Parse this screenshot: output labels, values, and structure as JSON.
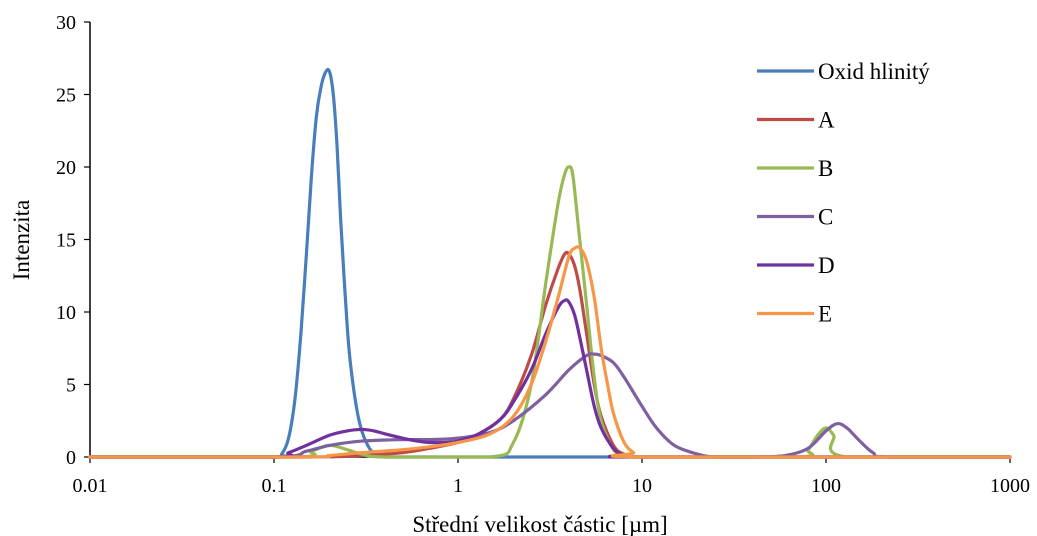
{
  "chart_data": {
    "type": "line",
    "title": "",
    "xlabel": "Střední velikost částic [µm]",
    "ylabel": "Intenzita",
    "xscale": "log",
    "xlim": [
      0.01,
      1000
    ],
    "ylim": [
      0,
      30
    ],
    "xticks": [
      0.01,
      0.1,
      1,
      10,
      100,
      1000
    ],
    "xtick_labels": [
      "0.01",
      "0.1",
      "1",
      "10",
      "100",
      "1000"
    ],
    "yticks": [
      0,
      5,
      10,
      15,
      20,
      25,
      30
    ],
    "ytick_labels": [
      "0",
      "5",
      "10",
      "15",
      "20",
      "25",
      "30"
    ],
    "grid": false,
    "legend_position": "right",
    "series": [
      {
        "name": "Oxid hlinitý",
        "color": "#4a7ebb",
        "x": [
          0.01,
          0.1,
          0.11,
          0.12,
          0.13,
          0.14,
          0.15,
          0.16,
          0.17,
          0.18,
          0.19,
          0.2,
          0.21,
          0.22,
          0.23,
          0.24,
          0.25,
          0.26,
          0.28,
          0.3,
          0.33,
          0.36,
          0.4,
          1,
          1000
        ],
        "y": [
          0,
          0,
          0.2,
          1.3,
          4.0,
          8.5,
          14.0,
          19.5,
          23.5,
          25.5,
          26.5,
          26.6,
          25.0,
          21.5,
          16.5,
          12.5,
          9.0,
          6.5,
          3.5,
          1.8,
          0.6,
          0.2,
          0,
          0,
          0
        ]
      },
      {
        "name": "A",
        "color": "#be4b48",
        "x": [
          0.01,
          0.15,
          0.3,
          0.5,
          0.7,
          1.0,
          1.3,
          1.7,
          2.0,
          2.5,
          3.0,
          3.5,
          3.8,
          4.0,
          4.3,
          4.6,
          5.0,
          5.5,
          6.0,
          7.0,
          8.0,
          10,
          1000
        ],
        "y": [
          0,
          0,
          0.1,
          0.3,
          0.6,
          1.0,
          1.6,
          2.6,
          4.0,
          7.0,
          10.5,
          13.0,
          14.0,
          14.0,
          13.2,
          11.5,
          8.5,
          5.0,
          2.8,
          0.8,
          0.2,
          0,
          0
        ]
      },
      {
        "name": "B",
        "color": "#98b954",
        "x": [
          0.01,
          0.13,
          0.16,
          0.2,
          0.25,
          0.3,
          0.4,
          1.5,
          2.0,
          2.5,
          3.0,
          3.5,
          3.8,
          4.0,
          4.2,
          4.5,
          5.0,
          5.5,
          6.0,
          7.0,
          8.0,
          9.0,
          70,
          80,
          90,
          100,
          110,
          130,
          1000
        ],
        "y": [
          0,
          0,
          0.4,
          0.8,
          0.5,
          0.2,
          0,
          0,
          1.0,
          5.0,
          12.0,
          17.5,
          19.5,
          20.0,
          19.5,
          16.0,
          10.5,
          5.5,
          2.5,
          0.5,
          0.1,
          0,
          0,
          0.5,
          1.5,
          2.0,
          1.5,
          0,
          0
        ]
      },
      {
        "name": "C",
        "color": "#7d60a0",
        "x": [
          0.01,
          0.1,
          0.15,
          0.2,
          0.3,
          0.5,
          0.7,
          1.0,
          1.5,
          2.0,
          3.0,
          4.0,
          5.0,
          5.5,
          6.0,
          7.0,
          8.0,
          10,
          12,
          15,
          20,
          25,
          40,
          60,
          80,
          100,
          115,
          130,
          150,
          180,
          220,
          1000
        ],
        "y": [
          0,
          0,
          0.4,
          0.8,
          1.1,
          1.2,
          1.2,
          1.3,
          1.7,
          2.5,
          4.3,
          6.0,
          7.0,
          7.1,
          7.0,
          6.5,
          5.5,
          3.5,
          2.0,
          0.8,
          0.2,
          0,
          0,
          0.1,
          0.6,
          1.8,
          2.3,
          2.0,
          1.2,
          0.3,
          0,
          0
        ]
      },
      {
        "name": "D",
        "color": "#7030a0",
        "x": [
          0.01,
          0.1,
          0.12,
          0.15,
          0.2,
          0.25,
          0.3,
          0.35,
          0.4,
          0.5,
          0.6,
          0.7,
          0.85,
          1.0,
          1.3,
          1.7,
          2.0,
          2.5,
          3.0,
          3.5,
          3.8,
          4.0,
          4.3,
          4.6,
          5.0,
          5.5,
          6.0,
          7.0,
          8.0,
          10,
          1000
        ],
        "y": [
          0,
          0,
          0.3,
          0.8,
          1.5,
          1.8,
          1.9,
          1.8,
          1.6,
          1.3,
          1.1,
          1.0,
          1.0,
          1.1,
          1.6,
          2.6,
          3.8,
          6.0,
          8.5,
          10.3,
          10.8,
          10.7,
          9.8,
          8.2,
          6.0,
          3.5,
          2.0,
          0.6,
          0.1,
          0,
          0
        ]
      },
      {
        "name": "E",
        "color": "#f79646",
        "x": [
          0.01,
          0.15,
          0.2,
          0.3,
          0.5,
          0.7,
          1.0,
          1.5,
          2.0,
          2.5,
          3.0,
          3.5,
          4.0,
          4.3,
          4.6,
          5.0,
          5.5,
          6.0,
          6.5,
          7.0,
          8.0,
          9.0,
          10,
          1000
        ],
        "y": [
          0,
          0,
          0.1,
          0.3,
          0.5,
          0.7,
          1.0,
          1.6,
          2.8,
          5.0,
          8.0,
          11.0,
          13.8,
          14.4,
          14.4,
          13.5,
          11.0,
          7.5,
          5.0,
          3.0,
          1.0,
          0.3,
          0,
          0
        ]
      }
    ]
  }
}
